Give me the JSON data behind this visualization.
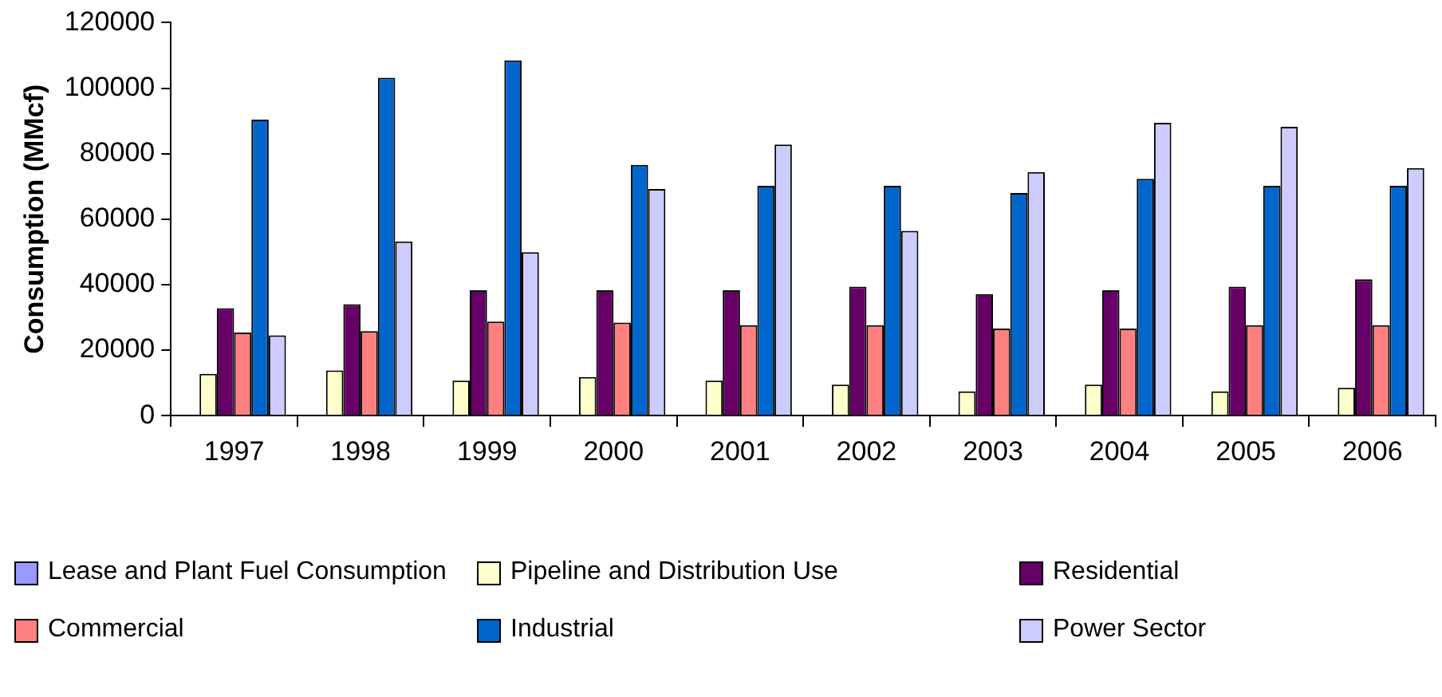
{
  "chart_data": {
    "type": "bar",
    "ylabel": "Consumption (MMcf)",
    "categories": [
      "1997",
      "1998",
      "1999",
      "2000",
      "2001",
      "2002",
      "2003",
      "2004",
      "2005",
      "2006"
    ],
    "series": [
      {
        "name": "Lease and Plant Fuel Consumption",
        "color": "#9999ff",
        "values": [
          null,
          null,
          null,
          null,
          null,
          null,
          null,
          null,
          null,
          null
        ]
      },
      {
        "name": "Pipeline and Distribution Use",
        "color": "#ffffcc",
        "values": [
          12800,
          13800,
          10700,
          11800,
          10700,
          9500,
          7400,
          9500,
          7400,
          8500
        ]
      },
      {
        "name": "Residential",
        "color": "#660066",
        "values": [
          32800,
          34000,
          38300,
          38300,
          38300,
          39400,
          37100,
          38300,
          39400,
          41600
        ]
      },
      {
        "name": "Commercial",
        "color": "#ff8080",
        "values": [
          25400,
          25800,
          28700,
          28400,
          27600,
          27600,
          26600,
          26600,
          27600,
          27600
        ]
      },
      {
        "name": "Industrial",
        "color": "#0066cc",
        "values": [
          90400,
          103200,
          108500,
          76600,
          70200,
          70200,
          68000,
          72300,
          70200,
          70200
        ]
      },
      {
        "name": "Power Sector",
        "color": "#ccccff",
        "values": [
          24500,
          53200,
          49900,
          69200,
          82800,
          56400,
          74400,
          89400,
          88200,
          75600
        ]
      }
    ],
    "ylim": [
      0,
      120000
    ],
    "yticks": [
      0,
      20000,
      40000,
      60000,
      80000,
      100000,
      120000
    ],
    "grid": false,
    "legend": "bottom"
  }
}
